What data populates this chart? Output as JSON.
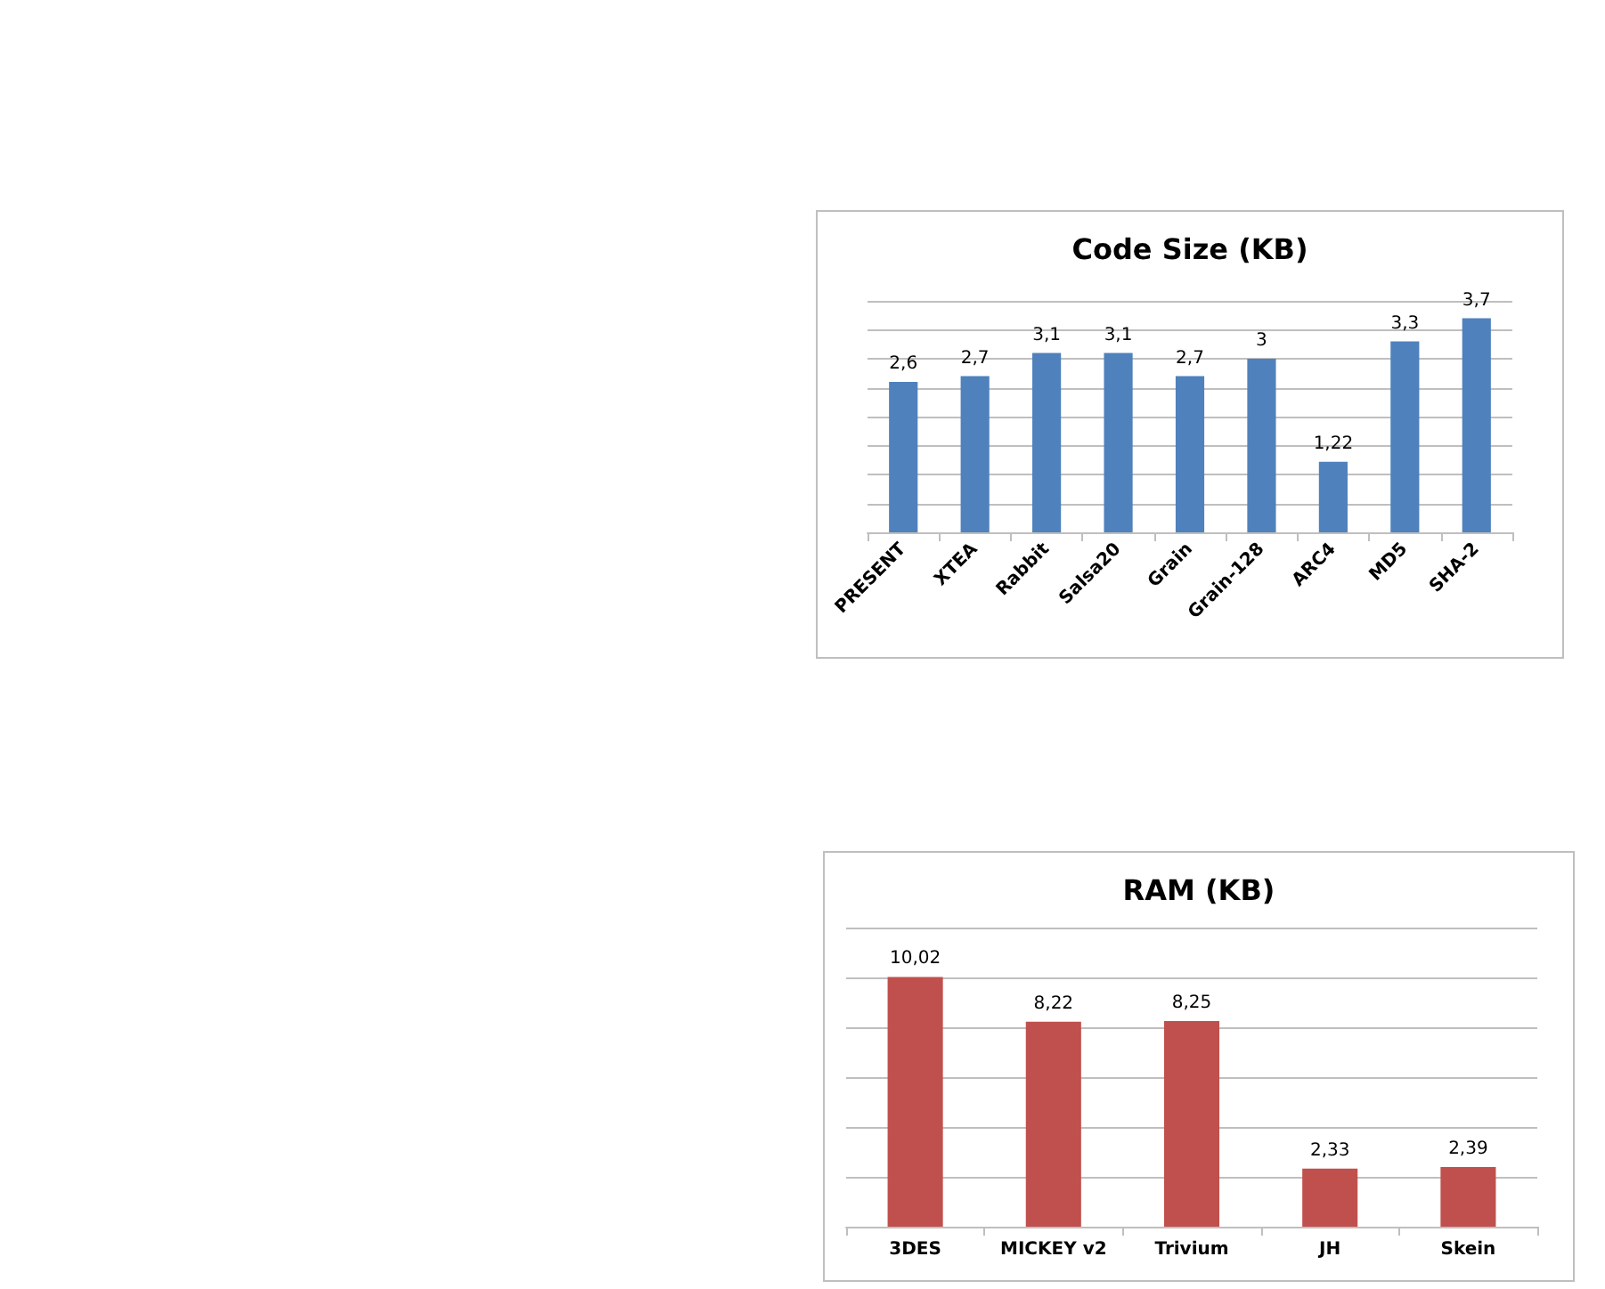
{
  "chart_data": [
    {
      "type": "bar",
      "title": "Code Size (KB)",
      "categories": [
        "PRESENT",
        "XTEA",
        "Rabbit",
        "Salsa20",
        "Grain",
        "Grain-128",
        "ARC4",
        "MD5",
        "SHA-2"
      ],
      "values": [
        2.6,
        2.7,
        3.1,
        3.1,
        2.7,
        3,
        1.22,
        3.3,
        3.7
      ],
      "value_labels": [
        "2,6",
        "2,7",
        "3,1",
        "3,1",
        "2,7",
        "3",
        "1,22",
        "3,3",
        "3,7"
      ],
      "color": "#4f81bd",
      "ylim": [
        0,
        4
      ],
      "yticks": [
        {
          "value": 0,
          "label": null
        },
        {
          "value": 0.5,
          "label": null
        },
        {
          "value": 1,
          "label": null
        },
        {
          "value": 1.5,
          "label": null
        },
        {
          "value": 2,
          "label": null
        },
        {
          "value": 2.5,
          "label": null
        },
        {
          "value": 3,
          "label": null
        },
        {
          "value": 3.5,
          "label": null
        },
        {
          "value": 4,
          "label": null
        }
      ],
      "grid": "y",
      "tick_labels": "x"
    },
    {
      "type": "bar",
      "title": "RAM (KB)",
      "categories": [
        "3DES",
        "MICKEY v2",
        "Trivium",
        "JH",
        "Skein"
      ],
      "values": [
        10.02,
        8.22,
        8.25,
        2.33,
        2.39
      ],
      "value_labels": [
        "10,02",
        "8,22",
        "8,25",
        "2,33",
        "2,39"
      ],
      "color": "#c0504d",
      "ylim": [
        0,
        12
      ],
      "yticks": [
        {
          "value": 0,
          "label": null
        },
        {
          "value": 2,
          "label": null
        },
        {
          "value": 4,
          "label": null
        },
        {
          "value": 6,
          "label": null
        },
        {
          "value": 8,
          "label": null
        },
        {
          "value": 10,
          "label": null
        },
        {
          "value": 12,
          "label": null
        }
      ],
      "grid": "y",
      "tick_labels": "x"
    }
  ]
}
